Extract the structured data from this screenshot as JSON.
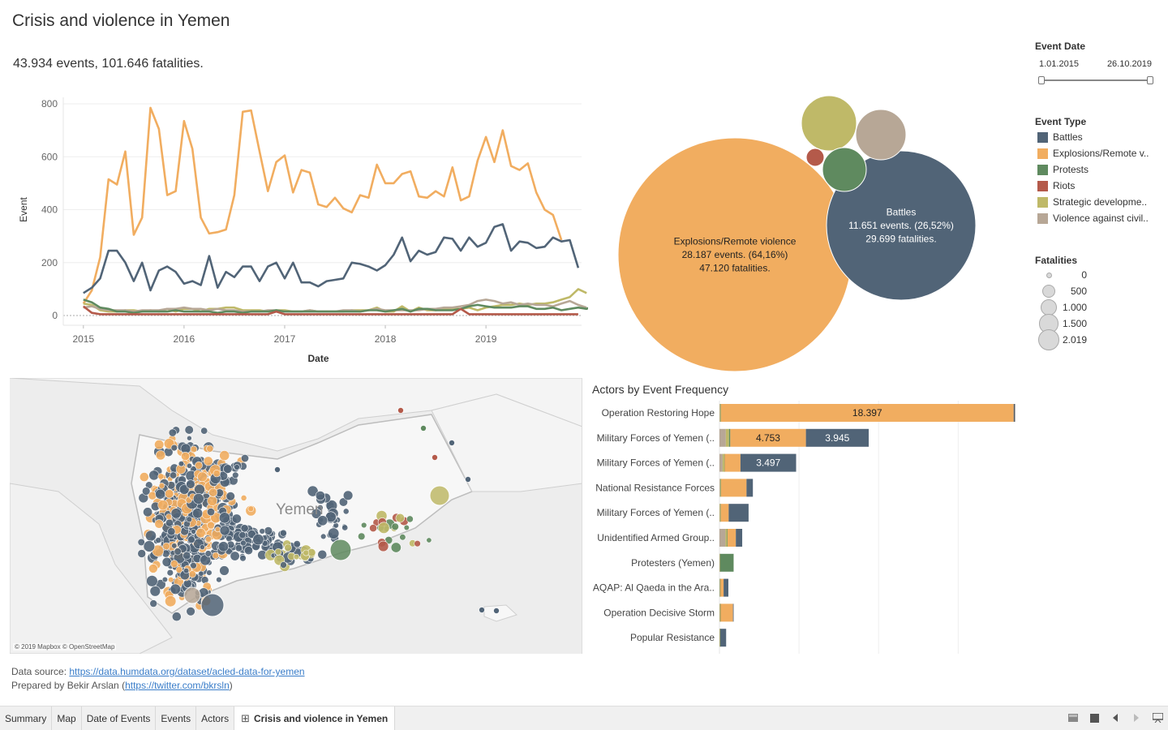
{
  "title": "Crisis and violence in Yemen",
  "summary": "43.934 events, 101.646 fatalities.",
  "colors": {
    "battles": "#516477",
    "explosions": "#f1ad60",
    "protests": "#5f8a5f",
    "riots": "#b45a4a",
    "strategic": "#bfb968",
    "violence": "#b7a796"
  },
  "filters": {
    "event_date_title": "Event Date",
    "date_start": "1.01.2015",
    "date_end": "26.10.2019",
    "event_type_title": "Event Type",
    "event_types": [
      {
        "label": "Battles",
        "color": "#516477"
      },
      {
        "label": "Explosions/Remote v..",
        "color": "#f1ad60"
      },
      {
        "label": "Protests",
        "color": "#5f8a5f"
      },
      {
        "label": "Riots",
        "color": "#b45a4a"
      },
      {
        "label": "Strategic developme..",
        "color": "#bfb968"
      },
      {
        "label": "Violence against civil..",
        "color": "#b7a796"
      }
    ],
    "fatalities_title": "Fatalities",
    "fatalities_sizes": [
      {
        "label": "0",
        "value": 0
      },
      {
        "label": "500",
        "value": 500
      },
      {
        "label": "1.000",
        "value": 1000
      },
      {
        "label": "1.500",
        "value": 1500
      },
      {
        "label": "2.019",
        "value": 2019
      }
    ]
  },
  "chart_data": [
    {
      "type": "line",
      "xlabel": "Date",
      "ylabel": "Event",
      "ylim": [
        0,
        800
      ],
      "yticks": [
        "0",
        "200",
        "400",
        "600",
        "800"
      ],
      "xticks": [
        {
          "label": "2015",
          "x": 2015.0
        },
        {
          "label": "2016",
          "x": 2016.0
        },
        {
          "label": "2017",
          "x": 2017.0
        },
        {
          "label": "2018",
          "x": 2018.0
        },
        {
          "label": "2019",
          "x": 2019.0
        }
      ],
      "x_start": "2015-01",
      "x_step": "month",
      "series": [
        {
          "name": "Explosions/Remote violence",
          "color": "#f1ad60",
          "values": [
            45,
            95,
            220,
            515,
            495,
            620,
            305,
            370,
            785,
            705,
            455,
            470,
            735,
            630,
            370,
            310,
            315,
            325,
            455,
            770,
            775,
            620,
            470,
            580,
            605,
            465,
            550,
            540,
            420,
            410,
            445,
            405,
            390,
            455,
            445,
            570,
            500,
            500,
            535,
            545,
            450,
            445,
            470,
            450,
            560,
            435,
            450,
            585,
            675,
            580,
            700,
            565,
            550,
            575,
            465,
            400,
            380,
            285
          ]
        },
        {
          "name": "Battles",
          "color": "#516477",
          "values": [
            85,
            105,
            140,
            245,
            245,
            200,
            130,
            200,
            95,
            170,
            185,
            165,
            120,
            130,
            115,
            225,
            105,
            165,
            145,
            185,
            185,
            130,
            185,
            200,
            140,
            200,
            125,
            125,
            110,
            130,
            135,
            140,
            200,
            195,
            185,
            170,
            190,
            230,
            295,
            205,
            245,
            230,
            240,
            295,
            290,
            245,
            295,
            260,
            275,
            335,
            345,
            245,
            280,
            275,
            255,
            260,
            295,
            280,
            285,
            180
          ]
        },
        {
          "name": "Strategic developments",
          "color": "#bfb968",
          "values": [
            45,
            40,
            20,
            15,
            15,
            20,
            20,
            15,
            20,
            15,
            25,
            15,
            25,
            25,
            15,
            25,
            25,
            30,
            30,
            20,
            20,
            20,
            15,
            20,
            20,
            15,
            15,
            20,
            15,
            15,
            15,
            15,
            20,
            20,
            20,
            30,
            15,
            15,
            35,
            15,
            30,
            20,
            20,
            25,
            25,
            25,
            30,
            20,
            30,
            35,
            40,
            40,
            45,
            40,
            45,
            45,
            50,
            60,
            70,
            100,
            85
          ]
        },
        {
          "name": "Violence against civilians",
          "color": "#b7a796",
          "values": [
            30,
            35,
            25,
            20,
            20,
            20,
            15,
            20,
            20,
            20,
            25,
            25,
            30,
            25,
            25,
            20,
            25,
            20,
            20,
            15,
            15,
            15,
            20,
            20,
            15,
            15,
            15,
            20,
            15,
            15,
            15,
            20,
            20,
            15,
            20,
            25,
            20,
            20,
            20,
            20,
            20,
            25,
            25,
            30,
            30,
            35,
            40,
            55,
            60,
            55,
            45,
            50,
            40,
            45,
            40,
            40,
            35,
            45,
            55,
            40,
            30
          ]
        },
        {
          "name": "Protests",
          "color": "#5f8a5f",
          "values": [
            60,
            50,
            30,
            25,
            15,
            15,
            10,
            15,
            15,
            15,
            15,
            20,
            15,
            15,
            15,
            15,
            10,
            15,
            15,
            10,
            15,
            15,
            15,
            20,
            15,
            15,
            15,
            15,
            15,
            15,
            15,
            15,
            15,
            15,
            20,
            20,
            15,
            20,
            25,
            15,
            25,
            25,
            20,
            20,
            20,
            25,
            35,
            40,
            35,
            30,
            30,
            30,
            35,
            35,
            25,
            25,
            30,
            20,
            25,
            30,
            25,
            40
          ]
        },
        {
          "name": "Riots",
          "color": "#b45a4a",
          "values": [
            35,
            10,
            5,
            5,
            5,
            5,
            5,
            5,
            5,
            5,
            5,
            5,
            5,
            5,
            5,
            5,
            5,
            5,
            5,
            5,
            5,
            5,
            5,
            15,
            5,
            5,
            5,
            5,
            5,
            5,
            5,
            5,
            5,
            5,
            5,
            5,
            5,
            5,
            5,
            5,
            5,
            5,
            5,
            5,
            5,
            25,
            5,
            5,
            5,
            5,
            5,
            5,
            5,
            5,
            5,
            5,
            5,
            5,
            5,
            5
          ]
        }
      ]
    },
    {
      "type": "bubble",
      "bubbles": [
        {
          "name": "Explosions/Remote violence",
          "events": 28187,
          "label_lines": [
            "Explosions/Remote violence",
            "28.187 events. (64,16%)",
            "47.120 fatalities."
          ],
          "color": "#f1ad60",
          "r": 144
        },
        {
          "name": "Battles",
          "events": 11651,
          "label_lines": [
            "Battles",
            "11.651 events. (26,52%)",
            "29.699 fatalities."
          ],
          "color": "#516477",
          "r": 92
        },
        {
          "name": "Strategic developments",
          "color": "#bfb968",
          "r": 34
        },
        {
          "name": "Violence against civilians",
          "color": "#b7a796",
          "r": 31
        },
        {
          "name": "Protests",
          "color": "#5f8a5f",
          "r": 27
        },
        {
          "name": "Riots",
          "color": "#b45a4a",
          "r": 11
        }
      ]
    },
    {
      "type": "bar",
      "title": "Actors by Event Frequency",
      "xlim": [
        0,
        18500
      ],
      "categories": [
        "Operation Restoring Hope",
        "Military Forces of Yemen (..",
        "Military Forces of Yemen (..",
        "National Resistance Forces",
        "Military Forces of Yemen (..",
        "Unidentified Armed Group..",
        "Protesters (Yemen)",
        "AQAP: Al Qaeda in the Ara..",
        "Operation Decisive Storm",
        "Popular Resistance"
      ],
      "series": [
        {
          "name": "Violence against civilians",
          "color": "#b7a796",
          "values": [
            30,
            400,
            200,
            40,
            20,
            380,
            20,
            20,
            20,
            20
          ]
        },
        {
          "name": "Strategic developments",
          "color": "#bfb968",
          "values": [
            40,
            200,
            100,
            40,
            40,
            100,
            20,
            20,
            30,
            20
          ]
        },
        {
          "name": "Protests",
          "color": "#5f8a5f",
          "values": [
            20,
            80,
            20,
            20,
            20,
            30,
            850,
            20,
            20,
            20
          ]
        },
        {
          "name": "Explosions/Remote violence",
          "color": "#f1ad60",
          "values": [
            18397,
            4753,
            1000,
            1600,
            500,
            520,
            0,
            200,
            780,
            0
          ]
        },
        {
          "name": "Battles",
          "color": "#516477",
          "values": [
            60,
            3945,
            3497,
            400,
            1250,
            400,
            0,
            300,
            30,
            360
          ]
        }
      ],
      "data_labels": [
        {
          "row": 0,
          "series": 3,
          "text": "18.397"
        },
        {
          "row": 1,
          "series": 3,
          "text": "4.753"
        },
        {
          "row": 1,
          "series": 4,
          "text": "3.945"
        },
        {
          "row": 2,
          "series": 4,
          "text": "3.497"
        }
      ]
    }
  ],
  "map": {
    "place_label": "Yemen",
    "attribution": "© 2019 Mapbox © OpenStreetMap"
  },
  "footer": {
    "source_prefix": "Data source: ",
    "source_link": "https://data.humdata.org/dataset/acled-data-for-yemen",
    "prepared_prefix": "Prepared by Bekir Arslan (",
    "prepared_link": "https://twitter.com/bkrsln",
    "prepared_suffix": ")"
  },
  "tabs": [
    {
      "label": "Summary",
      "active": false
    },
    {
      "label": "Map",
      "active": false
    },
    {
      "label": "Date of Events",
      "active": false
    },
    {
      "label": "Events",
      "active": false
    },
    {
      "label": "Actors",
      "active": false
    },
    {
      "label": "Crisis and violence in Yemen",
      "active": true
    }
  ],
  "toolbar_icons": [
    "thumbnail-view-icon",
    "filmstrip-icon",
    "previous-icon",
    "next-icon",
    "present-icon"
  ]
}
